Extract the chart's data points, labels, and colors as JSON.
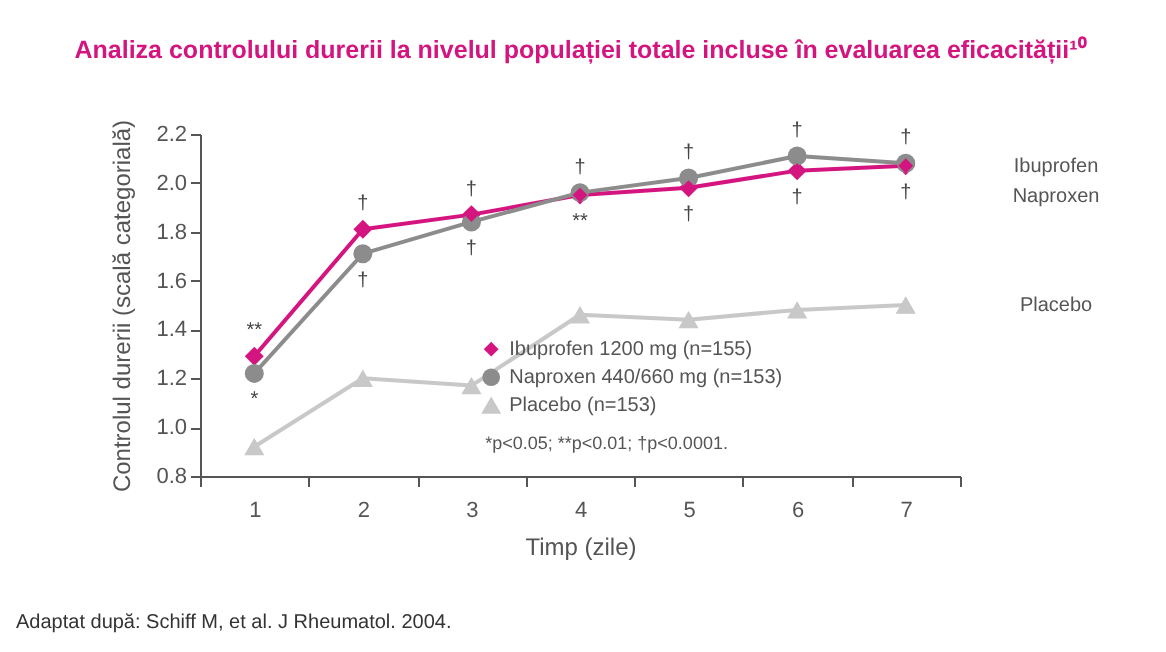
{
  "chart_data": {
    "type": "line",
    "title": "Analiza controlului durerii la nivelul populației totale incluse în evaluarea eficacității¹⁰",
    "xlabel": "Timp (zile)",
    "ylabel": "Controlul durerii (scală categorială)",
    "categories": [
      "1",
      "2",
      "3",
      "4",
      "5",
      "6",
      "7"
    ],
    "series": [
      {
        "name": "Ibuprofen 1200 mg (n=155)",
        "color": "#d4157f",
        "marker": "diamond",
        "values": [
          1.29,
          1.81,
          1.87,
          1.95,
          1.98,
          2.05,
          2.07
        ]
      },
      {
        "name": "Naproxen 440/660 mg (n=153)",
        "color": "#8c8c8c",
        "marker": "circle",
        "values": [
          1.22,
          1.71,
          1.84,
          1.96,
          2.02,
          2.11,
          2.08
        ]
      },
      {
        "name": "Placebo (n=153)",
        "color": "#c8c8c8",
        "marker": "triangle",
        "values": [
          0.92,
          1.2,
          1.17,
          1.46,
          1.44,
          1.48,
          1.5
        ]
      }
    ],
    "ylim": [
      0.8,
      2.2
    ],
    "yticks": [
      0.8,
      {
        "value": 1,
        "label": "1.0"
      },
      1.2,
      1.4,
      1.6,
      1.8,
      {
        "value": 2,
        "label": "2.0"
      },
      2.2
    ],
    "grid": false,
    "legend": "bottom right",
    "annotations": [
      "Ibuprofen",
      "Naproxen",
      "Placebo",
      "*p<0.05; **p<0.01; †p<0.0001.",
      "Adaptat după: Schiff M, et al. J Rheumatol. 2004.",
      {
        "text": "**",
        "x": "1",
        "y": 1.29
      },
      {
        "text": "*",
        "x": "1",
        "y": 1.22
      },
      {
        "text": "†",
        "x": "2",
        "y": 1.81
      },
      {
        "text": "†",
        "x": "2",
        "y": 1.71
      },
      {
        "text": "†",
        "x": "3",
        "y": 1.87
      },
      {
        "text": "†",
        "x": "3",
        "y": 1.84
      },
      {
        "text": "†",
        "x": "4",
        "y": 1.96
      },
      {
        "text": "**",
        "x": "4",
        "y": 1.95
      },
      {
        "text": "†",
        "x": "5",
        "y": 2.02
      },
      {
        "text": "†",
        "x": "5",
        "y": 1.98
      },
      {
        "text": "†",
        "x": "6",
        "y": 2.11
      },
      {
        "text": "†",
        "x": "6",
        "y": 2.05
      },
      {
        "text": "†",
        "x": "7",
        "y": 2.08
      },
      {
        "text": "†",
        "x": "7",
        "y": 2.07
      }
    ]
  }
}
